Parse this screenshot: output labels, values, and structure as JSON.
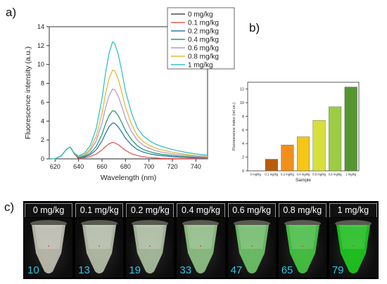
{
  "panels": {
    "a": "a)",
    "b": "b)",
    "c": "c)"
  },
  "chart_data": [
    {
      "type": "line",
      "xlabel": "Wavelength (nm)",
      "ylabel": "Fluorescence intensity (a.u.)",
      "xlim": [
        615,
        750
      ],
      "ylim": [
        0,
        14
      ],
      "xticks": [
        620,
        640,
        660,
        680,
        700,
        720,
        740
      ],
      "yticks": [
        0,
        2,
        4,
        6,
        8,
        10,
        12,
        14
      ],
      "legend_position": "top-right",
      "x": [
        615,
        620,
        625,
        630,
        633,
        636,
        640,
        645,
        650,
        655,
        660,
        663,
        666,
        669,
        671,
        674,
        677,
        680,
        685,
        690,
        695,
        700,
        705,
        710,
        720,
        730,
        740,
        750
      ],
      "series": [
        {
          "name": "0 mg/kg",
          "color": "#4d4d4d",
          "values": [
            0,
            0.02,
            0.3,
            1.05,
            1.25,
            0.6,
            0.02,
            0,
            0,
            0,
            0,
            0,
            0,
            0,
            0,
            0,
            0,
            0,
            0,
            0,
            0,
            0,
            0,
            0,
            0,
            0,
            0,
            0
          ]
        },
        {
          "name": "0.1 mg/kg",
          "color": "#e8595a",
          "values": [
            0,
            0.02,
            0.3,
            1.05,
            1.25,
            0.6,
            0.1,
            0.12,
            0.25,
            0.5,
            0.95,
            1.3,
            1.6,
            1.75,
            1.7,
            1.5,
            1.2,
            0.9,
            0.55,
            0.35,
            0.22,
            0.15,
            0.1,
            0.07,
            0.04,
            0.03,
            0.02,
            0.02
          ]
        },
        {
          "name": "0.2 mg/kg",
          "color": "#2e7bb0",
          "values": [
            0,
            0.02,
            0.3,
            1.05,
            1.25,
            0.62,
            0.15,
            0.2,
            0.45,
            0.95,
            1.9,
            2.7,
            3.4,
            3.8,
            3.75,
            3.35,
            2.8,
            2.2,
            1.5,
            1.0,
            0.72,
            0.55,
            0.43,
            0.35,
            0.23,
            0.16,
            0.1,
            0.08
          ]
        },
        {
          "name": "0.4 mg/kg",
          "color": "#2e9a6e",
          "values": [
            0,
            0.02,
            0.3,
            1.05,
            1.25,
            0.63,
            0.18,
            0.28,
            0.6,
            1.3,
            2.6,
            3.7,
            4.6,
            5.1,
            5.05,
            4.55,
            3.8,
            3.0,
            2.05,
            1.4,
            1.0,
            0.78,
            0.62,
            0.5,
            0.35,
            0.25,
            0.17,
            0.12
          ]
        },
        {
          "name": "0.6 mg/kg",
          "color": "#b49ad2",
          "values": [
            0,
            0.02,
            0.3,
            1.05,
            1.25,
            0.64,
            0.22,
            0.38,
            0.85,
            1.9,
            3.8,
            5.4,
            6.7,
            7.4,
            7.3,
            6.6,
            5.5,
            4.3,
            2.9,
            2.0,
            1.45,
            1.12,
            0.9,
            0.74,
            0.52,
            0.38,
            0.27,
            0.2
          ]
        },
        {
          "name": "0.8 mg/kg",
          "color": "#e6b93a",
          "values": [
            0,
            0.02,
            0.3,
            1.05,
            1.25,
            0.65,
            0.25,
            0.45,
            1.05,
            2.4,
            4.8,
            6.9,
            8.5,
            9.4,
            9.3,
            8.4,
            7.0,
            5.5,
            3.7,
            2.5,
            1.85,
            1.45,
            1.18,
            0.98,
            0.7,
            0.5,
            0.36,
            0.28
          ]
        },
        {
          "name": "1 mg/kg",
          "color": "#36c0c8",
          "values": [
            0,
            0.02,
            0.3,
            1.05,
            1.25,
            0.66,
            0.3,
            0.6,
            1.4,
            3.2,
            6.4,
            9.1,
            11.2,
            12.4,
            12.2,
            11.0,
            9.2,
            7.2,
            4.9,
            3.3,
            2.45,
            1.95,
            1.6,
            1.35,
            0.98,
            0.72,
            0.52,
            0.4
          ]
        }
      ]
    },
    {
      "type": "bar",
      "xlabel": "Sample",
      "ylabel": "Fluorescence index (rel.un.)",
      "ylim": [
        0,
        13
      ],
      "yticks": [
        0,
        2,
        4,
        6,
        8,
        10,
        12
      ],
      "categories": [
        "0 mg/kg",
        "0.1 mg/kg",
        "0.2 mg/kg",
        "0.4 mg/kg",
        "0.6 mg/kg",
        "0.8 mg/kg",
        "1 mg/kg"
      ],
      "values": [
        0,
        1.7,
        3.8,
        5.0,
        7.4,
        9.4,
        12.3
      ],
      "colors": [
        "#8c4a10",
        "#b85d0e",
        "#f28e1c",
        "#f5c518",
        "#d7df3c",
        "#9ccc44",
        "#55962f"
      ]
    }
  ],
  "photos": {
    "items": [
      {
        "label": "0 mg/kg",
        "value": "10",
        "glow": 0.0
      },
      {
        "label": "0.1 mg/kg",
        "value": "13",
        "glow": 0.05
      },
      {
        "label": "0.2 mg/kg",
        "value": "19",
        "glow": 0.12
      },
      {
        "label": "0.4 mg/kg",
        "value": "33",
        "glow": 0.3
      },
      {
        "label": "0.6 mg/kg",
        "value": "47",
        "glow": 0.5
      },
      {
        "label": "0.8 mg/kg",
        "value": "65",
        "glow": 0.75
      },
      {
        "label": "1 mg/kg",
        "value": "79",
        "glow": 1.0
      }
    ]
  }
}
